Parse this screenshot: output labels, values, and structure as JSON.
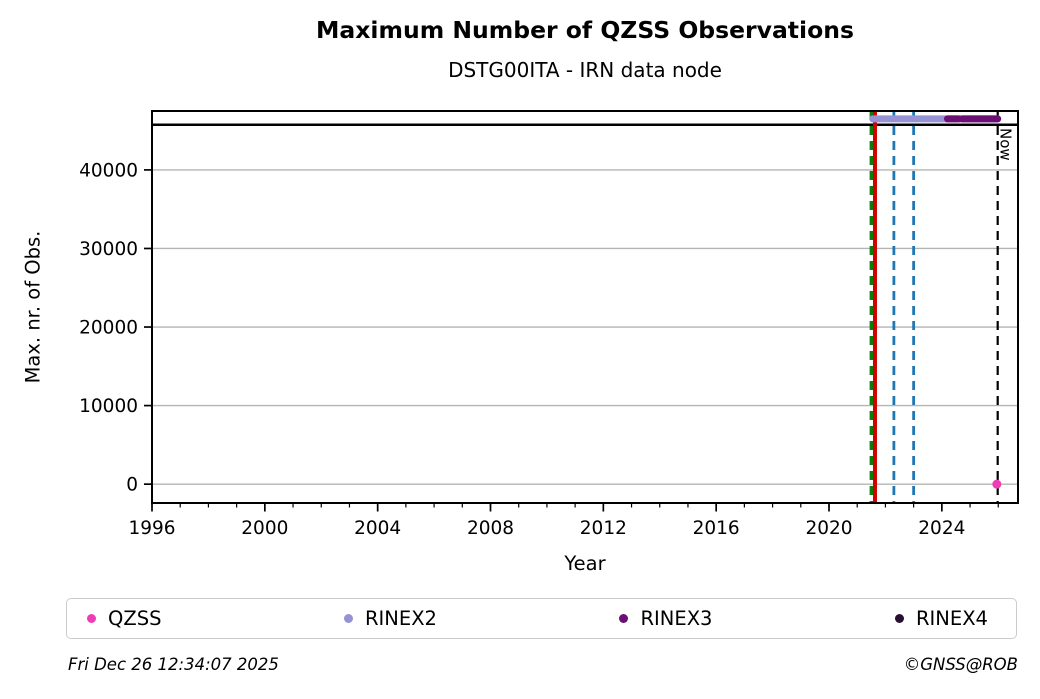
{
  "footer": {
    "timestamp": "Fri Dec 26 12:34:07 2025",
    "credit": "©GNSS@ROB"
  },
  "legend": {
    "items": [
      {
        "label": "QZSS",
        "color": "#f13cb5"
      },
      {
        "label": "RINEX2",
        "color": "#9593d3"
      },
      {
        "label": "RINEX3",
        "color": "#6b0f72"
      },
      {
        "label": "RINEX4",
        "color": "#2a1030"
      }
    ]
  },
  "chart_data": {
    "type": "line",
    "title": "Maximum Number of QZSS Observations",
    "subtitle": "DSTG00ITA - IRN data node",
    "xlabel": "Year",
    "ylabel": "Max. nr. of Obs.",
    "xlim": [
      1996,
      2026.7
    ],
    "ylim": [
      -2400,
      47500
    ],
    "xticks": [
      1996,
      2000,
      2004,
      2008,
      2012,
      2016,
      2020,
      2024
    ],
    "yticks": [
      0,
      10000,
      20000,
      30000,
      40000
    ],
    "x_minor_tick_step": 1,
    "grid": "horizontal",
    "grid_color": "#b4b4b4",
    "hlines": [
      {
        "y": 45750,
        "color": "#000000",
        "style": "solid",
        "width": 2.6
      }
    ],
    "vlines": [
      {
        "x": 2021.5,
        "color": "#0a7d0a",
        "style": "dashed",
        "width": 3.4
      },
      {
        "x": 2021.63,
        "color": "#d40000",
        "style": "solid",
        "width": 4
      },
      {
        "x": 2022.3,
        "color": "#1f77b4",
        "style": "dashed",
        "width": 2.8
      },
      {
        "x": 2023.0,
        "color": "#1f77b4",
        "style": "dashed",
        "width": 2.8
      },
      {
        "x": 2025.98,
        "color": "#000000",
        "style": "dashed",
        "width": 2.2,
        "label": "Now"
      }
    ],
    "availability_segments": [
      {
        "series": "RINEX2",
        "y": 46500,
        "x_start": 2021.55,
        "x_end": 2025.98,
        "color": "#9593d3"
      },
      {
        "series": "RINEX3",
        "y": 46500,
        "x_start": 2024.2,
        "x_end": 2024.6,
        "color": "#6b0f72"
      },
      {
        "series": "RINEX3",
        "y": 46500,
        "x_start": 2024.72,
        "x_end": 2025.98,
        "color": "#6b0f72"
      }
    ],
    "points": [
      {
        "series": "QZSS",
        "x": 2025.95,
        "y": 0,
        "color": "#f13cb5"
      }
    ]
  }
}
